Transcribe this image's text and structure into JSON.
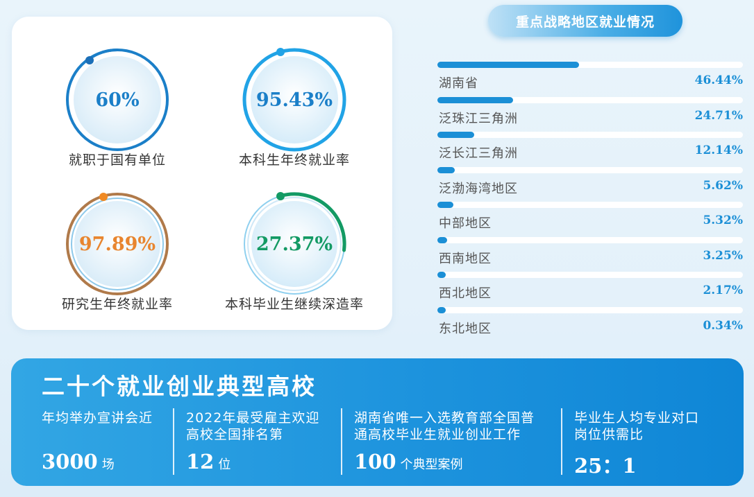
{
  "rings": [
    {
      "value": "60%",
      "label": "就职于国有单位",
      "color": "#1b7fc8"
    },
    {
      "value": "95.43%",
      "label": "本科生年终就业率",
      "color": "#1b7fc8"
    },
    {
      "value": "97.89%",
      "label": "研究生年终就业率",
      "color": "#e8852f"
    },
    {
      "value": "27.37%",
      "label": "本科毕业生继续深造率",
      "color": "#139a64"
    }
  ],
  "regions": {
    "title": "重点战略地区就业情况",
    "items": [
      {
        "name": "湖南省",
        "pct": "46.44%",
        "value": 46.44
      },
      {
        "name": "泛珠江三角洲",
        "pct": "24.71%",
        "value": 24.71
      },
      {
        "name": "泛长江三角洲",
        "pct": "12.14%",
        "value": 12.14
      },
      {
        "name": "泛渤海湾地区",
        "pct": "5.62%",
        "value": 5.62
      },
      {
        "name": "中部地区",
        "pct": "5.32%",
        "value": 5.32
      },
      {
        "name": "西南地区",
        "pct": "3.25%",
        "value": 3.25
      },
      {
        "name": "西北地区",
        "pct": "2.17%",
        "value": 2.17
      },
      {
        "name": "东北地区",
        "pct": "0.34%",
        "value": 0.34
      }
    ]
  },
  "banner": {
    "title": "二十个就业创业典型高校",
    "stats": [
      {
        "desc1": "年均举办宣讲会近",
        "desc2": "",
        "num": "3000",
        "unit": "场"
      },
      {
        "desc1": "2022年最受雇主欢迎",
        "desc2": "高校全国排名第",
        "num": "12",
        "unit": "位"
      },
      {
        "desc1": "湖南省唯一入选教育部全国普",
        "desc2": "通高校毕业生就业创业工作",
        "num": "100",
        "unit": "个典型案例"
      },
      {
        "desc1": "毕业生人均专业对口",
        "desc2": "岗位供需比",
        "num": "25：1",
        "unit": ""
      }
    ]
  }
}
